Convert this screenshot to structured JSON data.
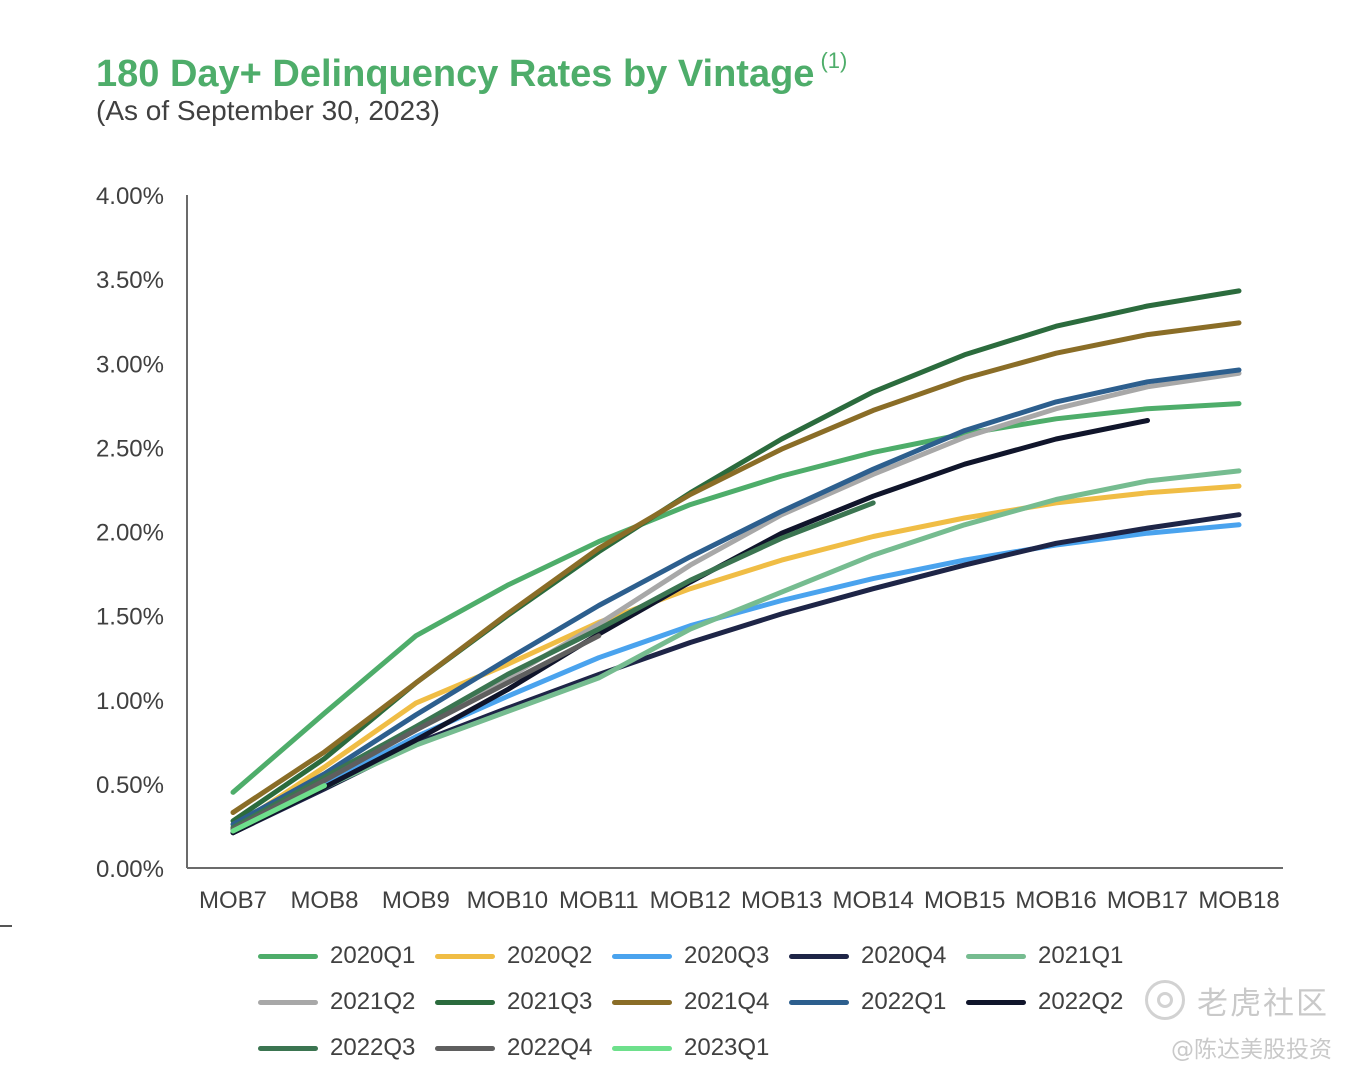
{
  "chart_data": {
    "type": "line",
    "title": "180 Day+ Delinquency Rates by Vintage",
    "title_note": "(1)",
    "subtitle": "(As of September 30, 2023)",
    "xlabel": "",
    "ylabel": "",
    "categories": [
      "MOB7",
      "MOB8",
      "MOB9",
      "MOB10",
      "MOB11",
      "MOB12",
      "MOB13",
      "MOB14",
      "MOB15",
      "MOB16",
      "MOB17",
      "MOB18"
    ],
    "y_ticks": [
      "0.00%",
      "0.50%",
      "1.00%",
      "1.50%",
      "2.00%",
      "2.50%",
      "3.00%",
      "3.50%",
      "4.00%"
    ],
    "ylim": [
      0,
      4.0
    ],
    "y_unit": "%",
    "grid": false,
    "legend_position": "bottom",
    "series": [
      {
        "name": "2020Q1",
        "color": "#4ead6a",
        "values": [
          0.45,
          0.92,
          1.38,
          1.68,
          1.94,
          2.16,
          2.33,
          2.47,
          2.58,
          2.67,
          2.73,
          2.76
        ]
      },
      {
        "name": "2020Q2",
        "color": "#f0bd45",
        "values": [
          0.24,
          0.6,
          0.98,
          1.21,
          1.46,
          1.66,
          1.83,
          1.97,
          2.08,
          2.17,
          2.23,
          2.27
        ]
      },
      {
        "name": "2020Q3",
        "color": "#4aa3ee",
        "values": [
          0.23,
          0.5,
          0.78,
          1.02,
          1.25,
          1.44,
          1.59,
          1.72,
          1.83,
          1.92,
          1.99,
          2.04
        ]
      },
      {
        "name": "2020Q4",
        "color": "#1e2547",
        "values": [
          0.21,
          0.47,
          0.74,
          0.95,
          1.15,
          1.34,
          1.51,
          1.66,
          1.8,
          1.93,
          2.02,
          2.1
        ]
      },
      {
        "name": "2021Q1",
        "color": "#76bc90",
        "values": [
          0.23,
          0.48,
          0.73,
          0.93,
          1.13,
          1.42,
          1.64,
          1.86,
          2.04,
          2.19,
          2.3,
          2.36
        ]
      },
      {
        "name": "2021Q2",
        "color": "#a8a8a8",
        "values": [
          0.24,
          0.53,
          0.82,
          1.13,
          1.45,
          1.8,
          2.1,
          2.34,
          2.56,
          2.73,
          2.86,
          2.94
        ]
      },
      {
        "name": "2021Q3",
        "color": "#2b6b3d",
        "values": [
          0.28,
          0.65,
          1.1,
          1.5,
          1.88,
          2.23,
          2.55,
          2.83,
          3.05,
          3.22,
          3.34,
          3.43
        ]
      },
      {
        "name": "2021Q4",
        "color": "#8a6d27",
        "values": [
          0.33,
          0.69,
          1.1,
          1.51,
          1.9,
          2.22,
          2.49,
          2.72,
          2.91,
          3.06,
          3.17,
          3.24
        ]
      },
      {
        "name": "2022Q1",
        "color": "#2d5f8e",
        "values": [
          0.26,
          0.56,
          0.91,
          1.24,
          1.56,
          1.85,
          2.12,
          2.37,
          2.6,
          2.77,
          2.89,
          2.96
        ]
      },
      {
        "name": "2022Q2",
        "color": "#10152b",
        "values": [
          0.21,
          0.48,
          0.76,
          1.06,
          1.39,
          1.7,
          1.99,
          2.21,
          2.4,
          2.55,
          2.66,
          null
        ]
      },
      {
        "name": "2022Q3",
        "color": "#3b7551",
        "values": [
          0.24,
          0.54,
          0.84,
          1.15,
          1.42,
          1.71,
          1.96,
          2.17,
          null,
          null,
          null,
          null
        ]
      },
      {
        "name": "2022Q4",
        "color": "#5f5f5f",
        "values": [
          0.23,
          0.52,
          0.82,
          1.1,
          1.38,
          null,
          null,
          null,
          null,
          null,
          null,
          null
        ]
      },
      {
        "name": "2023Q1",
        "color": "#6ee08c",
        "values": [
          0.22,
          0.49,
          null,
          null,
          null,
          null,
          null,
          null,
          null,
          null,
          null,
          null
        ]
      }
    ]
  },
  "watermark": {
    "name": "老虎社区",
    "author": "@陈达美股投资"
  }
}
